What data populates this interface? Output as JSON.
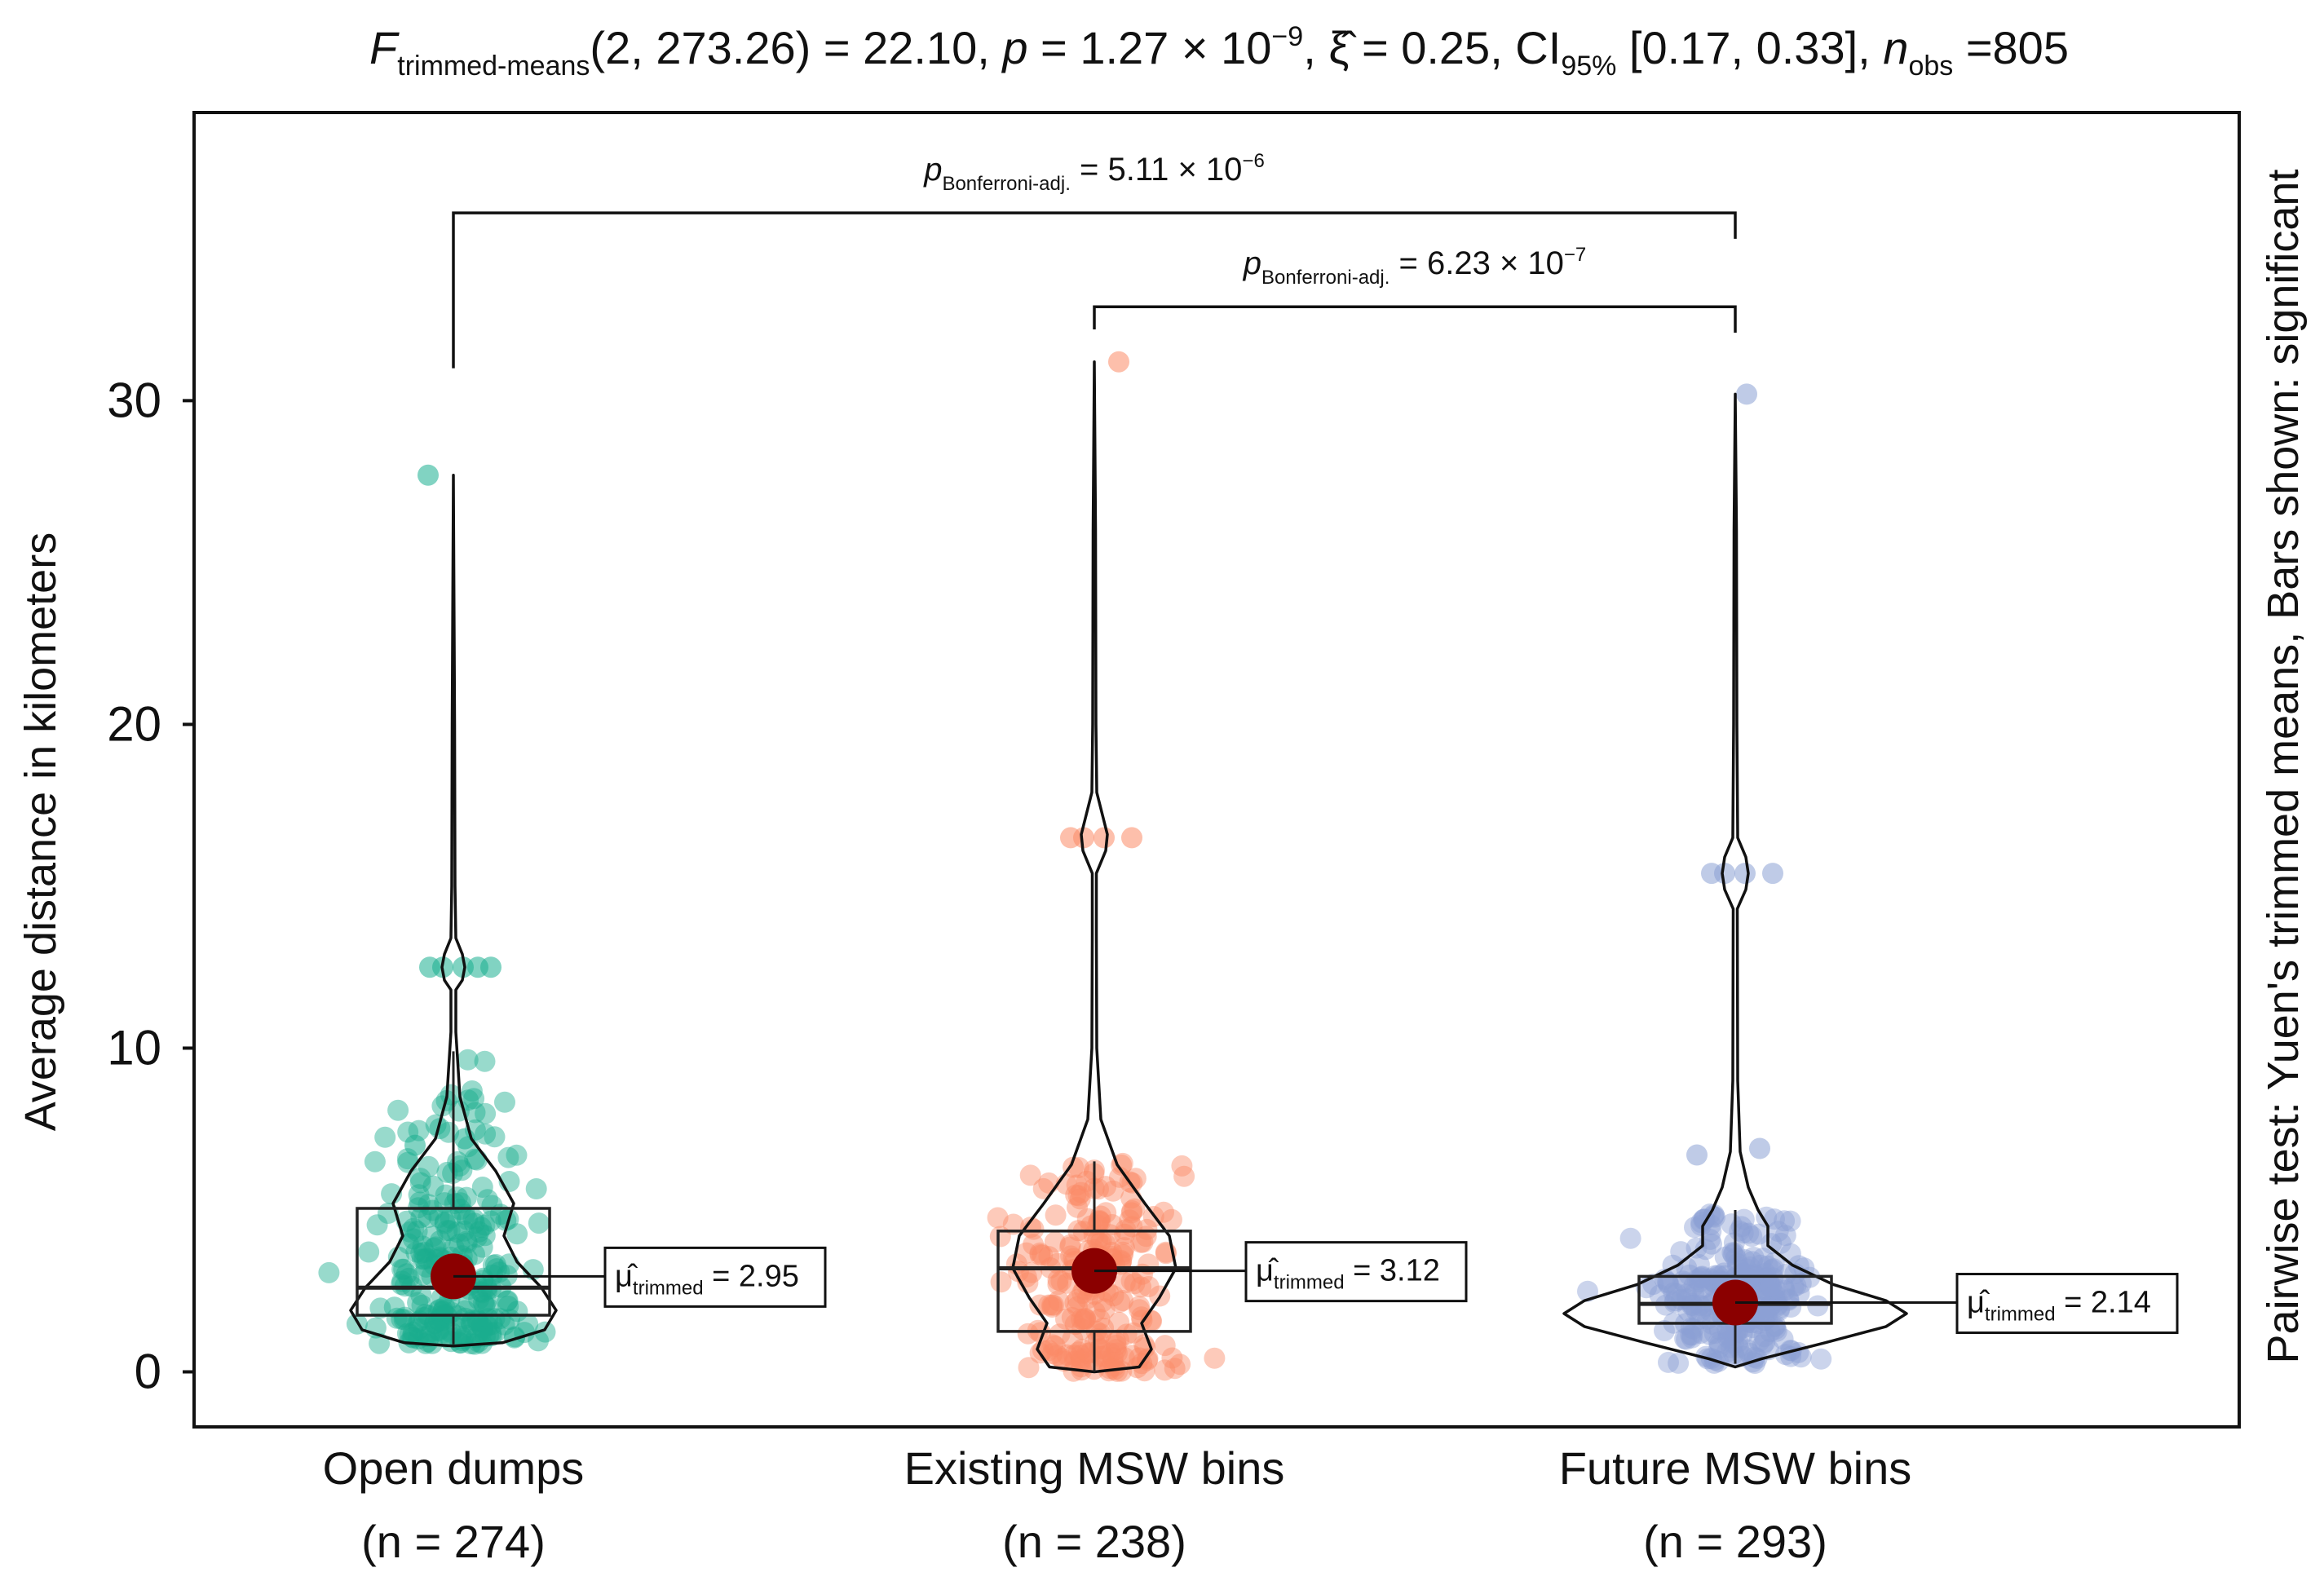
{
  "chart_data": {
    "type": "violin-box-scatter",
    "title": {
      "f_symbol": "F",
      "f_sub": "trimmed-means",
      "f_args": "(2, 273.26) = 22.10, ",
      "p_symbol": "p",
      "p_value": " = 1.27 × 10",
      "p_exp": "−9",
      "xi_part": ",  ξ̂  = 0.25, CI",
      "ci_sub": "95%",
      "ci_part": " [0.17, 0.33], ",
      "n_symbol": "n",
      "n_sub": "obs",
      "n_part": " =805"
    },
    "ylabel": "Average distance in kilometers",
    "right_label": "Pairwise test: Yuen's trimmed means, Bars shown: significant",
    "ylim": [
      -1.7,
      38.9
    ],
    "yticks": [
      0,
      10,
      20,
      30
    ],
    "ytick_labels": [
      "0",
      "10",
      "20",
      "30"
    ],
    "colors": {
      "open_dumps": "#1aae8f",
      "existing_bins": "#fb8a66",
      "future_bins": "#8ba0d4",
      "mean_dot": "#8b0000"
    },
    "groups": [
      {
        "key": "open_dumps",
        "name": "Open dumps",
        "n_label": "(n = 274)",
        "trimmed_mean": 2.95,
        "mean_symbol": "μ̂",
        "mean_sub": "trimmed",
        "mean_label": " = 2.95",
        "box": {
          "q1": 1.75,
          "median": 2.6,
          "q3": 5.05,
          "whisker_low": 0.85,
          "whisker_high": 9.9
        },
        "max": 27.7,
        "outliers": [
          12.5,
          12.5,
          12.5,
          12.5,
          12.5,
          7.0,
          7.2,
          27.7
        ],
        "n": 274
      },
      {
        "key": "existing_bins",
        "name": "Existing MSW bins",
        "n_label": "(n = 238)",
        "trimmed_mean": 3.12,
        "mean_symbol": "μ̂",
        "mean_sub": "trimmed",
        "mean_label": " = 3.12",
        "box": {
          "q1": 1.25,
          "median": 3.2,
          "q3": 4.35,
          "whisker_low": 0.0,
          "whisker_high": 6.5
        },
        "max": 31.2,
        "outliers": [
          16.5,
          16.5,
          16.5,
          16.5,
          31.2
        ],
        "n": 238
      },
      {
        "key": "future_bins",
        "name": "Future MSW bins",
        "n_label": "(n = 293)",
        "trimmed_mean": 2.14,
        "mean_symbol": "μ̂",
        "mean_sub": "trimmed",
        "mean_label": " = 2.14",
        "box": {
          "q1": 1.5,
          "median": 2.1,
          "q3": 2.95,
          "whisker_low": 0.25,
          "whisker_high": 5.0
        },
        "max": 30.2,
        "outliers": [
          15.4,
          15.4,
          15.4,
          15.4,
          6.9,
          6.7,
          30.2
        ],
        "n": 293
      }
    ],
    "comparisons": [
      {
        "from": "existing_bins",
        "to": "future_bins",
        "p_symbol": "p",
        "p_sub": "Bonferroni-adj.",
        "p_text": " = 6.23 × 10",
        "p_exp": "−7",
        "bar_y": 32.9
      },
      {
        "from": "open_dumps",
        "to": "future_bins",
        "p_symbol": "p",
        "p_sub": "Bonferroni-adj.",
        "p_text": " = 5.11 × 10",
        "p_exp": "−6",
        "bar_y": 35.8
      }
    ]
  }
}
